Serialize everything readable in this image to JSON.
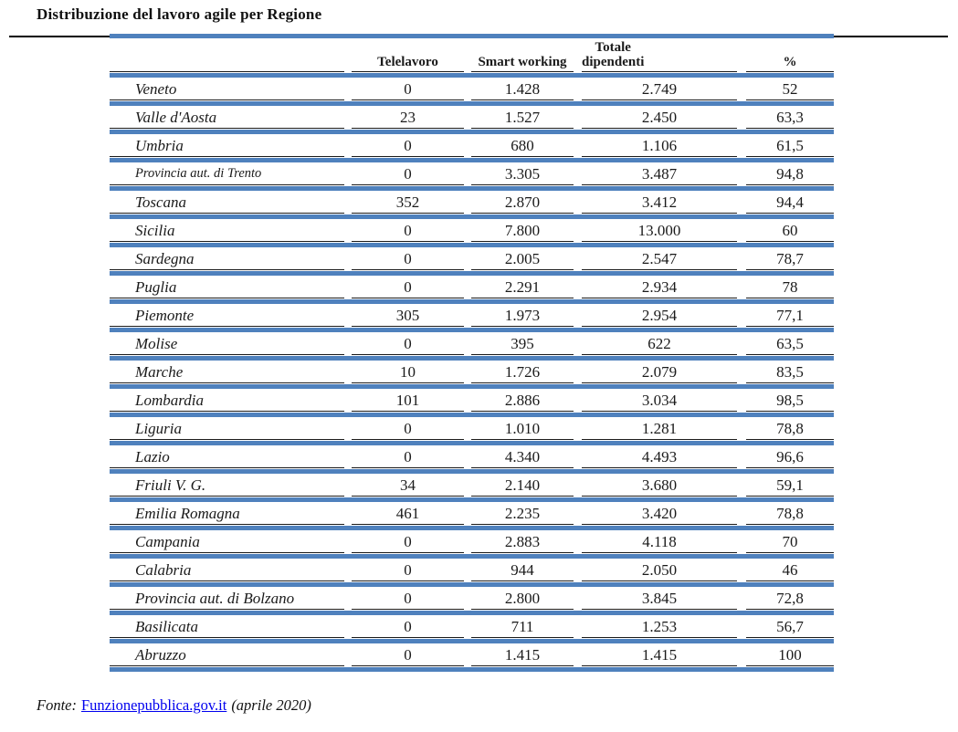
{
  "title": "Distribuzione del lavoro agile per Regione",
  "colors": {
    "band_blue": "#4f81bd",
    "rule_black": "#000000",
    "link_blue": "#0000ee"
  },
  "table": {
    "header": {
      "region": "",
      "telelavoro": "Telelavoro",
      "smart_working": "Smart working",
      "totale_line1": "Totale",
      "totale_line2": "dipendenti",
      "percent": "%"
    },
    "rows": [
      {
        "region": "Veneto",
        "telelavoro": "0",
        "smart_working": "1.428",
        "totale_dipendenti": "2.749",
        "percent": "52"
      },
      {
        "region": "Valle d'Aosta",
        "telelavoro": "23",
        "smart_working": "1.527",
        "totale_dipendenti": "2.450",
        "percent": "63,3"
      },
      {
        "region": "Umbria",
        "telelavoro": "0",
        "smart_working": "680",
        "totale_dipendenti": "1.106",
        "percent": "61,5"
      },
      {
        "region": "Provincia aut. di Trento",
        "telelavoro": "0",
        "smart_working": "3.305",
        "totale_dipendenti": "3.487",
        "percent": "94,8"
      },
      {
        "region": "Toscana",
        "telelavoro": "352",
        "smart_working": "2.870",
        "totale_dipendenti": "3.412",
        "percent": "94,4"
      },
      {
        "region": "Sicilia",
        "telelavoro": "0",
        "smart_working": "7.800",
        "totale_dipendenti": "13.000",
        "percent": "60"
      },
      {
        "region": "Sardegna",
        "telelavoro": "0",
        "smart_working": "2.005",
        "totale_dipendenti": "2.547",
        "percent": "78,7"
      },
      {
        "region": "Puglia",
        "telelavoro": "0",
        "smart_working": "2.291",
        "totale_dipendenti": "2.934",
        "percent": "78"
      },
      {
        "region": "Piemonte",
        "telelavoro": "305",
        "smart_working": "1.973",
        "totale_dipendenti": "2.954",
        "percent": "77,1"
      },
      {
        "region": "Molise",
        "telelavoro": "0",
        "smart_working": "395",
        "totale_dipendenti": "622",
        "percent": "63,5"
      },
      {
        "region": "Marche",
        "telelavoro": "10",
        "smart_working": "1.726",
        "totale_dipendenti": "2.079",
        "percent": "83,5"
      },
      {
        "region": "Lombardia",
        "telelavoro": "101",
        "smart_working": "2.886",
        "totale_dipendenti": "3.034",
        "percent": "98,5"
      },
      {
        "region": "Liguria",
        "telelavoro": "0",
        "smart_working": "1.010",
        "totale_dipendenti": "1.281",
        "percent": "78,8"
      },
      {
        "region": "Lazio",
        "telelavoro": "0",
        "smart_working": "4.340",
        "totale_dipendenti": "4.493",
        "percent": "96,6"
      },
      {
        "region": "Friuli V. G.",
        "telelavoro": "34",
        "smart_working": "2.140",
        "totale_dipendenti": "3.680",
        "percent": "59,1"
      },
      {
        "region": "Emilia Romagna",
        "telelavoro": "461",
        "smart_working": "2.235",
        "totale_dipendenti": "3.420",
        "percent": "78,8"
      },
      {
        "region": "Campania",
        "telelavoro": "0",
        "smart_working": "2.883",
        "totale_dipendenti": "4.118",
        "percent": "70"
      },
      {
        "region": "Calabria",
        "telelavoro": "0",
        "smart_working": "944",
        "totale_dipendenti": "2.050",
        "percent": "46"
      },
      {
        "region": "Provincia aut. di Bolzano",
        "telelavoro": "0",
        "smart_working": "2.800",
        "totale_dipendenti": "3.845",
        "percent": "72,8"
      },
      {
        "region": "Basilicata",
        "telelavoro": "0",
        "smart_working": "711",
        "totale_dipendenti": "1.253",
        "percent": "56,7"
      },
      {
        "region": "Abruzzo",
        "telelavoro": "0",
        "smart_working": "1.415",
        "totale_dipendenti": "1.415",
        "percent": "100"
      }
    ]
  },
  "footer": {
    "fonte_label": "Fonte:",
    "link_text": "Funzionepubblica.gov.it",
    "suffix": "(aprile 2020)"
  }
}
